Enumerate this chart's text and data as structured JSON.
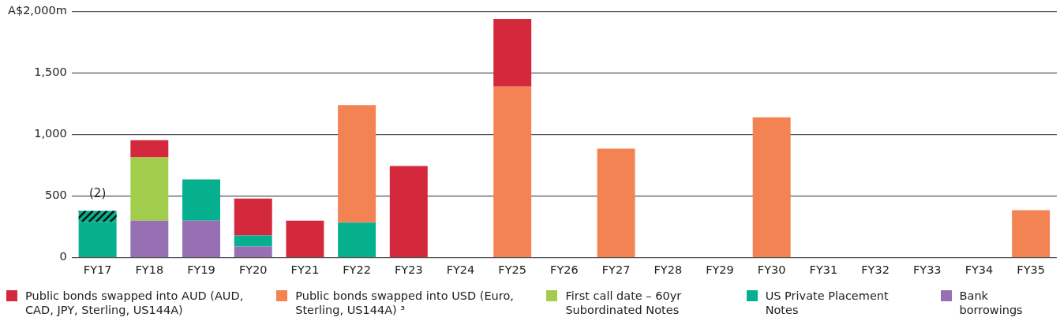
{
  "chart_data": {
    "type": "bar",
    "stacked": true,
    "categories": [
      "FY17",
      "FY18",
      "FY19",
      "FY20",
      "FY21",
      "FY22",
      "FY23",
      "FY24",
      "FY25",
      "FY26",
      "FY27",
      "FY28",
      "FY29",
      "FY30",
      "FY31",
      "FY32",
      "FY33",
      "FY34",
      "FY35"
    ],
    "series": [
      {
        "name": "Bank borrowings",
        "color": "#9670b3",
        "values": [
          null,
          300,
          300,
          90,
          null,
          null,
          null,
          null,
          null,
          null,
          null,
          null,
          null,
          null,
          null,
          null,
          null,
          null,
          null
        ]
      },
      {
        "name": "US Private Placement Notes",
        "color": "#06b08f",
        "values": [
          290,
          null,
          335,
          90,
          null,
          285,
          null,
          null,
          null,
          null,
          null,
          null,
          null,
          null,
          null,
          null,
          null,
          null,
          null
        ]
      },
      {
        "color": "#06b08f",
        "values": [
          90,
          null,
          null,
          null,
          null,
          null,
          null,
          null,
          null,
          null,
          null,
          null,
          null,
          null,
          null,
          null,
          null,
          null,
          null
        ]
      },
      {
        "name": "First call date – 60yr Subordinated Notes",
        "color": "#a2cd4c",
        "values": [
          null,
          515,
          null,
          null,
          null,
          null,
          null,
          null,
          null,
          null,
          null,
          null,
          null,
          null,
          null,
          null,
          null,
          null,
          null
        ]
      },
      {
        "name": "Public bonds swapped into USD (Euro, Sterling, US144A) ³",
        "color": "#f38353",
        "values": [
          null,
          null,
          null,
          null,
          null,
          955,
          null,
          null,
          1390,
          null,
          885,
          null,
          null,
          1140,
          null,
          null,
          null,
          null,
          385
        ]
      },
      {
        "name": "Public bonds swapped into AUD (AUD, CAD, JPY, Sterling, US144A)",
        "color": "#d4283c",
        "values": [
          null,
          140,
          null,
          300,
          300,
          null,
          745,
          null,
          550,
          null,
          null,
          null,
          null,
          null,
          null,
          null,
          null,
          null,
          null
        ]
      }
    ],
    "ylim": [
      0,
      2000
    ],
    "yticks": [
      {
        "value": 0,
        "label": "0"
      },
      {
        "value": 500,
        "label": "500"
      },
      {
        "value": 1000,
        "label": "1,000"
      },
      {
        "value": 1500,
        "label": "1,500"
      },
      {
        "value": 2000,
        "label": "A$2,000m"
      }
    ],
    "grid": "y",
    "legend": "bottom",
    "annotations": [
      {
        "text": "(2)",
        "x": "FY17",
        "y": 380
      }
    ]
  }
}
